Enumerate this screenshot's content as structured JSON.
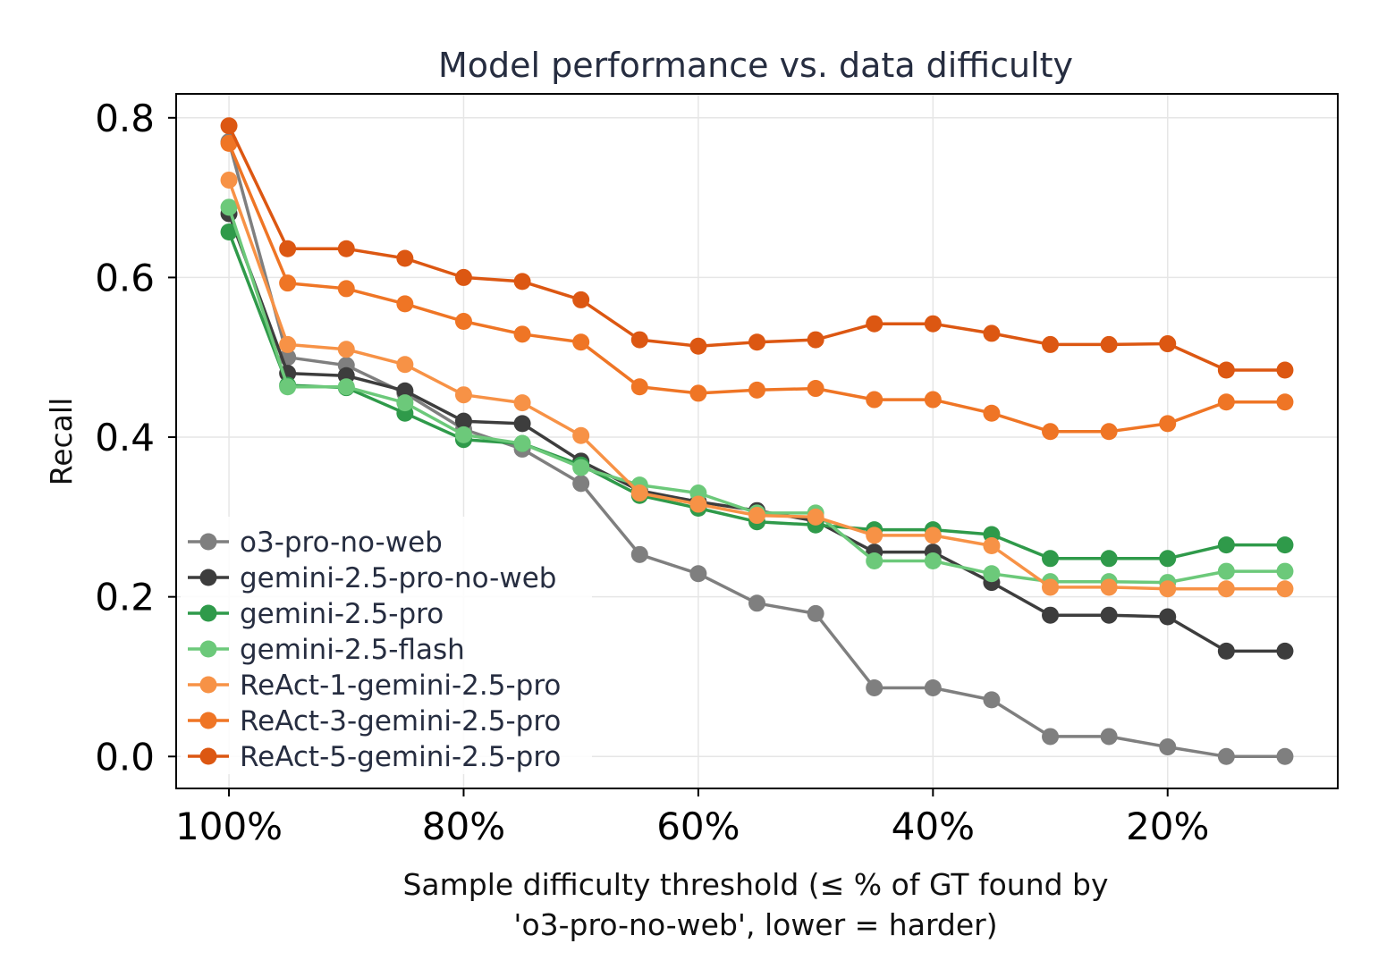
{
  "chart_data": {
    "type": "line",
    "title": "Model performance vs. data difficulty",
    "xlabel_lines": [
      "Sample difficulty threshold (≤ % of GT found by",
      "'o3-pro-no-web', lower = harder)"
    ],
    "ylabel": "Recall",
    "x": [
      100,
      95,
      90,
      85,
      80,
      75,
      70,
      65,
      60,
      55,
      50,
      45,
      40,
      35,
      30,
      25,
      20,
      15,
      10
    ],
    "xlim": [
      104.5,
      5.5
    ],
    "ylim": [
      -0.04,
      0.83
    ],
    "x_ticks": [
      100,
      80,
      60,
      40,
      20
    ],
    "x_tick_labels": [
      "100%",
      "80%",
      "60%",
      "40%",
      "20%"
    ],
    "y_ticks": [
      0.0,
      0.2,
      0.4,
      0.6,
      0.8
    ],
    "y_tick_labels": [
      "0.0",
      "0.2",
      "0.4",
      "0.6",
      "0.8"
    ],
    "grid": true,
    "legend_position": "lower-left",
    "series": [
      {
        "name": "o3-pro-no-web",
        "color": "#7f7f7f",
        "values": [
          0.77,
          0.5,
          0.49,
          0.455,
          0.41,
          0.385,
          0.342,
          0.253,
          0.229,
          0.192,
          0.179,
          0.086,
          0.086,
          0.071,
          0.025,
          0.025,
          0.012,
          0.0,
          0.0
        ]
      },
      {
        "name": "gemini-2.5-pro-no-web",
        "color": "#3d3d3d",
        "values": [
          0.68,
          0.48,
          0.477,
          0.458,
          0.42,
          0.417,
          0.37,
          0.333,
          0.319,
          0.308,
          0.295,
          0.256,
          0.256,
          0.218,
          0.177,
          0.177,
          0.175,
          0.132,
          0.132
        ]
      },
      {
        "name": "gemini-2.5-pro",
        "color": "#2f9a4a",
        "values": [
          0.657,
          0.465,
          0.462,
          0.43,
          0.397,
          0.392,
          0.365,
          0.327,
          0.311,
          0.294,
          0.29,
          0.284,
          0.284,
          0.278,
          0.248,
          0.248,
          0.248,
          0.265,
          0.265
        ]
      },
      {
        "name": "gemini-2.5-flash",
        "color": "#6cc97a",
        "values": [
          0.688,
          0.463,
          0.463,
          0.443,
          0.403,
          0.392,
          0.362,
          0.34,
          0.33,
          0.305,
          0.305,
          0.245,
          0.245,
          0.229,
          0.219,
          0.219,
          0.218,
          0.232,
          0.232
        ]
      },
      {
        "name": "ReAct-1-gemini-2.5-pro",
        "color": "#f79246",
        "values": [
          0.722,
          0.516,
          0.51,
          0.491,
          0.453,
          0.443,
          0.402,
          0.33,
          0.316,
          0.302,
          0.3,
          0.277,
          0.277,
          0.264,
          0.212,
          0.212,
          0.21,
          0.21,
          0.21
        ]
      },
      {
        "name": "ReAct-3-gemini-2.5-pro",
        "color": "#ef7525",
        "values": [
          0.768,
          0.593,
          0.586,
          0.567,
          0.545,
          0.529,
          0.519,
          0.463,
          0.455,
          0.459,
          0.461,
          0.447,
          0.447,
          0.43,
          0.407,
          0.407,
          0.417,
          0.444,
          0.444
        ]
      },
      {
        "name": "ReAct-5-gemini-2.5-pro",
        "color": "#dc5712",
        "values": [
          0.79,
          0.636,
          0.636,
          0.624,
          0.6,
          0.595,
          0.572,
          0.522,
          0.514,
          0.519,
          0.522,
          0.542,
          0.542,
          0.53,
          0.516,
          0.516,
          0.517,
          0.484,
          0.484
        ]
      }
    ]
  }
}
